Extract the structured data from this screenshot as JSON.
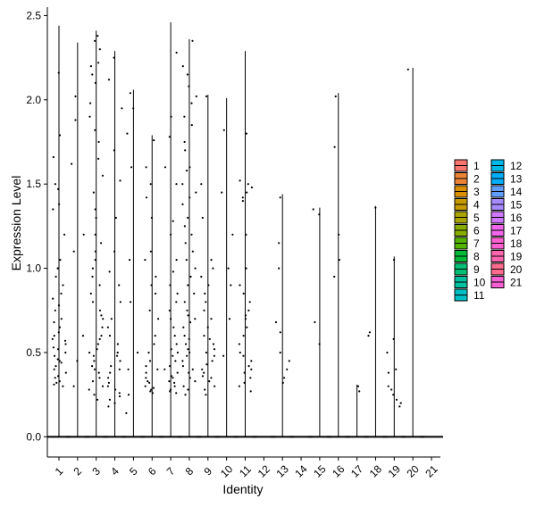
{
  "chart_data": {
    "type": "violin",
    "xlabel": "Identity",
    "ylabel": "Expression Level",
    "ylim": [
      -0.12,
      2.55
    ],
    "yticks": [
      0.0,
      0.5,
      1.0,
      1.5,
      2.0,
      2.5
    ],
    "ytick_labels": [
      "0.0",
      "0.5",
      "1.0",
      "1.5",
      "2.0",
      "2.5"
    ],
    "categories": [
      "1",
      "2",
      "3",
      "4",
      "5",
      "6",
      "7",
      "8",
      "9",
      "10",
      "11",
      "12",
      "13",
      "14",
      "15",
      "16",
      "17",
      "18",
      "19",
      "20",
      "21"
    ],
    "colors": [
      "#F8766D",
      "#EB8335",
      "#DA8F00",
      "#C49A00",
      "#A9A400",
      "#86AC00",
      "#53B400",
      "#00BA38",
      "#00BF74",
      "#00C19F",
      "#00BFC4",
      "#00B8E5",
      "#00ADFA",
      "#619CFF",
      "#A58AFF",
      "#D078FF",
      "#F066EA",
      "#FD61D1",
      "#FF65AE",
      "#FF6A8D",
      "#FB61D7"
    ],
    "series": [
      {
        "category": "1",
        "max": 2.44,
        "points": [
          2.16,
          1.79,
          1.66,
          1.5,
          1.47,
          1.38,
          1.35,
          1.2,
          1.05,
          1.0,
          0.95,
          0.9,
          0.85,
          0.82,
          0.78,
          0.75,
          0.7,
          0.68,
          0.65,
          0.62,
          0.6,
          0.58,
          0.57,
          0.55,
          0.53,
          0.52,
          0.5,
          0.48,
          0.46,
          0.45,
          0.44,
          0.42,
          0.4,
          0.38,
          0.36,
          0.35,
          0.33,
          0.32,
          0.31,
          0.3
        ]
      },
      {
        "category": "2",
        "max": 2.34,
        "points": [
          2.02,
          1.88,
          1.62,
          1.2,
          1.1,
          0.6,
          0.45,
          0.3
        ]
      },
      {
        "category": "3",
        "max": 2.41,
        "points": [
          2.38,
          2.35,
          2.3,
          2.22,
          2.2,
          2.15,
          2.1,
          1.98,
          1.9,
          1.82,
          1.75,
          1.65,
          1.55,
          1.45,
          1.35,
          1.3,
          1.2,
          1.15,
          1.1,
          1.05,
          1.0,
          0.95,
          0.9,
          0.85,
          0.8,
          0.75,
          0.72,
          0.7,
          0.65,
          0.6,
          0.58,
          0.55,
          0.52,
          0.5,
          0.48,
          0.45,
          0.42,
          0.4,
          0.38,
          0.35,
          0.33,
          0.3,
          0.28,
          0.25,
          0.22
        ]
      },
      {
        "category": "4",
        "max": 2.29,
        "points": [
          2.25,
          2.12,
          1.95,
          1.7,
          1.52,
          1.3,
          1.1,
          0.98,
          0.9,
          0.8,
          0.7,
          0.65,
          0.6,
          0.55,
          0.5,
          0.48,
          0.45,
          0.42,
          0.4,
          0.38,
          0.35,
          0.32,
          0.3,
          0.28,
          0.26,
          0.24,
          0.22,
          0.2,
          0.18
        ]
      },
      {
        "category": "5",
        "max": 2.06,
        "points": [
          2.04,
          1.95,
          1.8,
          1.6,
          1.05,
          0.8,
          0.5,
          0.4,
          0.25,
          0.14
        ]
      },
      {
        "category": "6",
        "max": 1.79,
        "points": [
          1.76,
          1.6,
          1.5,
          1.42,
          1.3,
          1.1,
          1.05,
          0.95,
          0.9,
          0.85,
          0.75,
          0.7,
          0.6,
          0.55,
          0.5,
          0.45,
          0.42,
          0.4,
          0.38,
          0.35,
          0.33,
          0.32,
          0.3,
          0.29,
          0.28,
          0.27,
          0.26
        ]
      },
      {
        "category": "7",
        "max": 2.46,
        "points": [
          2.28,
          1.9,
          1.78,
          1.6,
          1.5,
          1.28,
          1.2,
          1.05,
          0.98,
          0.9,
          0.85,
          0.8,
          0.75,
          0.7,
          0.65,
          0.6,
          0.55,
          0.52,
          0.5,
          0.48,
          0.45,
          0.42,
          0.4,
          0.38,
          0.36,
          0.35,
          0.33,
          0.32,
          0.3,
          0.28,
          0.27,
          0.26
        ]
      },
      {
        "category": "8",
        "max": 2.36,
        "points": [
          2.35,
          2.2,
          2.15,
          2.08,
          2.02,
          1.98,
          1.9,
          1.85,
          1.75,
          1.7,
          1.6,
          1.58,
          1.5,
          1.45,
          1.42,
          1.38,
          1.3,
          1.25,
          1.2,
          1.15,
          1.1,
          1.05,
          1.0,
          0.95,
          0.9,
          0.85,
          0.8,
          0.75,
          0.72,
          0.7,
          0.68,
          0.65,
          0.6,
          0.58,
          0.55,
          0.52,
          0.5,
          0.48,
          0.45,
          0.42,
          0.4,
          0.38,
          0.35,
          0.33,
          0.3,
          0.28,
          0.25
        ]
      },
      {
        "category": "9",
        "max": 2.03,
        "points": [
          2.02,
          1.5,
          1.3,
          1.05,
          1.0,
          0.95,
          0.9,
          0.85,
          0.8,
          0.75,
          0.7,
          0.65,
          0.6,
          0.58,
          0.55,
          0.52,
          0.5,
          0.48,
          0.45,
          0.43,
          0.4,
          0.38,
          0.36,
          0.35,
          0.33,
          0.3,
          0.28,
          0.25
        ]
      },
      {
        "category": "10",
        "max": 2.01,
        "points": [
          1.82,
          1.45,
          1.2,
          1.0,
          0.9,
          0.7,
          0.48
        ]
      },
      {
        "category": "11",
        "max": 2.29,
        "points": [
          1.8,
          1.52,
          1.5,
          1.48,
          1.45,
          1.42,
          1.4,
          1.2,
          1.0,
          0.9,
          0.85,
          0.8,
          0.75,
          0.72,
          0.7,
          0.65,
          0.6,
          0.55,
          0.5,
          0.48,
          0.45,
          0.42,
          0.4,
          0.38,
          0.35,
          0.32,
          0.3,
          0.27
        ]
      },
      {
        "category": "12",
        "max": 0.0,
        "points": []
      },
      {
        "category": "13",
        "max": 1.44,
        "points": [
          1.42,
          1.15,
          1.0,
          0.68,
          0.62,
          0.5,
          0.45,
          0.4,
          0.35,
          0.32
        ]
      },
      {
        "category": "14",
        "max": 0.0,
        "points": []
      },
      {
        "category": "15",
        "max": 1.36,
        "points": [
          1.35,
          1.32,
          0.68,
          0.55
        ]
      },
      {
        "category": "16",
        "max": 2.04,
        "points": [
          2.02,
          1.72,
          1.2,
          1.05,
          0.95
        ]
      },
      {
        "category": "17",
        "max": 0.31,
        "points": [
          0.3,
          0.27
        ]
      },
      {
        "category": "18",
        "max": 1.37,
        "points": [
          1.36,
          0.62,
          0.6
        ]
      },
      {
        "category": "19",
        "max": 1.07,
        "points": [
          1.05,
          0.58,
          0.5,
          0.4,
          0.38,
          0.3,
          0.28,
          0.25,
          0.22,
          0.2,
          0.18
        ]
      },
      {
        "category": "20",
        "max": 2.19,
        "points": [
          2.18
        ]
      },
      {
        "category": "21",
        "max": 0.0,
        "points": []
      }
    ],
    "legend_position": "right",
    "grid": false
  }
}
